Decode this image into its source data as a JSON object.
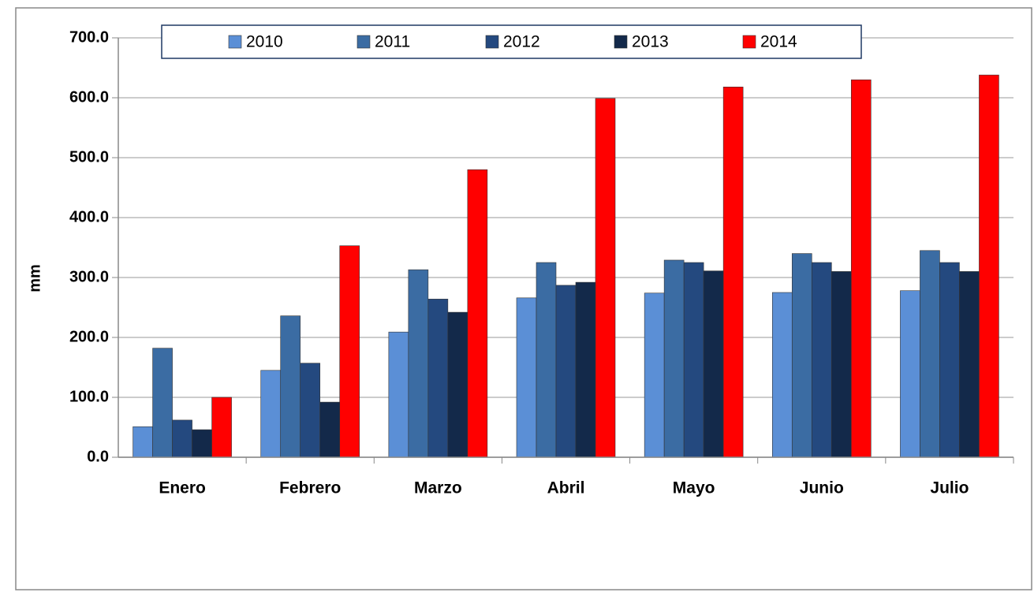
{
  "chart_data": {
    "type": "bar",
    "y_label": "mm",
    "categories": [
      "Enero",
      "Febrero",
      "Marzo",
      "Abril",
      "Mayo",
      "Junio",
      "Julio"
    ],
    "series": [
      {
        "name": "2010",
        "color": "#5b8fd6",
        "values": [
          51,
          145,
          209,
          266,
          274,
          275,
          278
        ]
      },
      {
        "name": "2011",
        "color": "#3b6ca3",
        "values": [
          182,
          236,
          313,
          325,
          329,
          340,
          345
        ]
      },
      {
        "name": "2012",
        "color": "#24497f",
        "values": [
          62,
          157,
          264,
          287,
          325,
          325,
          325
        ]
      },
      {
        "name": "2013",
        "color": "#13294a",
        "values": [
          46,
          92,
          242,
          292,
          311,
          310,
          310
        ]
      },
      {
        "name": "2014",
        "color": "#ff0000",
        "values": [
          100,
          353,
          480,
          599,
          618,
          630,
          638
        ]
      }
    ],
    "ylim": [
      0,
      700
    ],
    "yticks": [
      {
        "value": 0,
        "label": "0.0"
      },
      {
        "value": 100,
        "label": "100.0"
      },
      {
        "value": 200,
        "label": "200.0"
      },
      {
        "value": 300,
        "label": "300.0"
      },
      {
        "value": 400,
        "label": "400.0"
      },
      {
        "value": 500,
        "label": "500.0"
      },
      {
        "value": 600,
        "label": "600.0"
      },
      {
        "value": 700,
        "label": "700.0"
      }
    ],
    "grid": true,
    "legend": "top"
  }
}
